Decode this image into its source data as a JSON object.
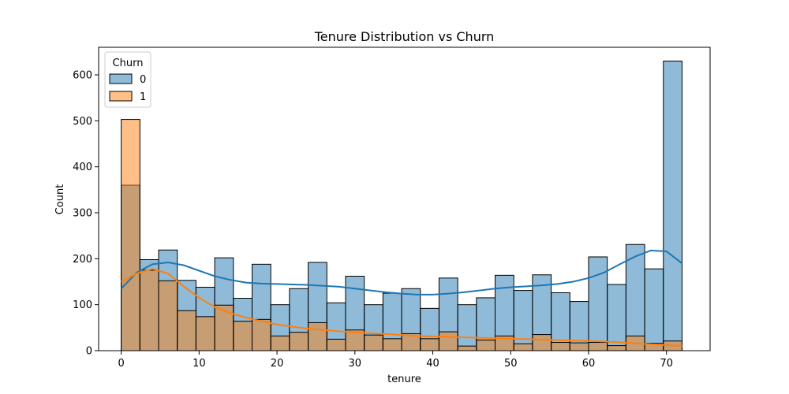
{
  "chart_data": {
    "type": "bar",
    "title": "Tenure Distribution vs Churn",
    "xlabel": "tenure",
    "ylabel": "Count",
    "xlim": [
      -2.9,
      75.6
    ],
    "ylim": [
      0,
      660
    ],
    "xticks": [
      0,
      10,
      20,
      30,
      40,
      50,
      60,
      70
    ],
    "yticks": [
      0,
      100,
      200,
      300,
      400,
      500,
      600
    ],
    "bin_edges": [
      0,
      2.4,
      4.8,
      7.2,
      9.6,
      12,
      14.4,
      16.8,
      19.2,
      21.6,
      24,
      26.4,
      28.8,
      31.2,
      33.6,
      36,
      38.4,
      40.8,
      43.2,
      45.6,
      48,
      50.4,
      52.8,
      55.2,
      57.6,
      60,
      62.4,
      64.8,
      67.2,
      69.6,
      72
    ],
    "legend": {
      "title": "Churn",
      "position": "top-left"
    },
    "colors": {
      "series0_fill": "#1f77b4",
      "series1_fill": "#ff7f0e",
      "series0_kde": "#1f77b4",
      "series1_kde": "#ff7f0e"
    },
    "series": [
      {
        "name": "0",
        "values": [
          360,
          198,
          219,
          153,
          138,
          202,
          114,
          188,
          100,
          135,
          192,
          104,
          162,
          100,
          125,
          135,
          92,
          158,
          100,
          115,
          164,
          131,
          165,
          126,
          107,
          204,
          144,
          231,
          178,
          630
        ],
        "kde": [
          [
            0,
            135
          ],
          [
            2,
            170
          ],
          [
            4,
            188
          ],
          [
            6,
            192
          ],
          [
            8,
            186
          ],
          [
            10,
            174
          ],
          [
            12,
            162
          ],
          [
            14,
            154
          ],
          [
            16,
            148
          ],
          [
            18,
            146
          ],
          [
            20,
            145
          ],
          [
            22,
            144
          ],
          [
            24,
            143
          ],
          [
            26,
            141
          ],
          [
            28,
            139
          ],
          [
            30,
            135
          ],
          [
            32,
            131
          ],
          [
            34,
            127
          ],
          [
            36,
            124
          ],
          [
            38,
            122
          ],
          [
            40,
            122
          ],
          [
            42,
            124
          ],
          [
            44,
            127
          ],
          [
            46,
            131
          ],
          [
            48,
            135
          ],
          [
            50,
            138
          ],
          [
            52,
            140
          ],
          [
            54,
            142
          ],
          [
            56,
            145
          ],
          [
            58,
            150
          ],
          [
            60,
            158
          ],
          [
            62,
            170
          ],
          [
            64,
            188
          ],
          [
            66,
            205
          ],
          [
            68,
            218
          ],
          [
            70,
            216
          ],
          [
            72,
            190
          ]
        ]
      },
      {
        "name": "1",
        "values": [
          503,
          175,
          152,
          87,
          74,
          99,
          64,
          68,
          32,
          40,
          61,
          25,
          45,
          34,
          26,
          37,
          26,
          41,
          10,
          23,
          32,
          15,
          35,
          18,
          17,
          18,
          11,
          32,
          16,
          21
        ],
        "kde": [
          [
            0,
            150
          ],
          [
            2,
            168
          ],
          [
            4,
            178
          ],
          [
            6,
            168
          ],
          [
            8,
            140
          ],
          [
            10,
            115
          ],
          [
            12,
            95
          ],
          [
            14,
            82
          ],
          [
            16,
            72
          ],
          [
            18,
            64
          ],
          [
            20,
            57
          ],
          [
            22,
            52
          ],
          [
            24,
            48
          ],
          [
            26,
            45
          ],
          [
            28,
            42
          ],
          [
            30,
            40
          ],
          [
            32,
            38
          ],
          [
            34,
            36
          ],
          [
            36,
            34
          ],
          [
            38,
            32
          ],
          [
            40,
            31
          ],
          [
            42,
            30
          ],
          [
            44,
            29
          ],
          [
            46,
            28
          ],
          [
            48,
            27
          ],
          [
            50,
            26
          ],
          [
            52,
            25
          ],
          [
            54,
            24
          ],
          [
            56,
            23
          ],
          [
            58,
            22
          ],
          [
            60,
            21
          ],
          [
            62,
            20
          ],
          [
            64,
            18
          ],
          [
            66,
            16
          ],
          [
            68,
            14
          ],
          [
            70,
            12
          ],
          [
            72,
            10
          ]
        ]
      }
    ]
  }
}
